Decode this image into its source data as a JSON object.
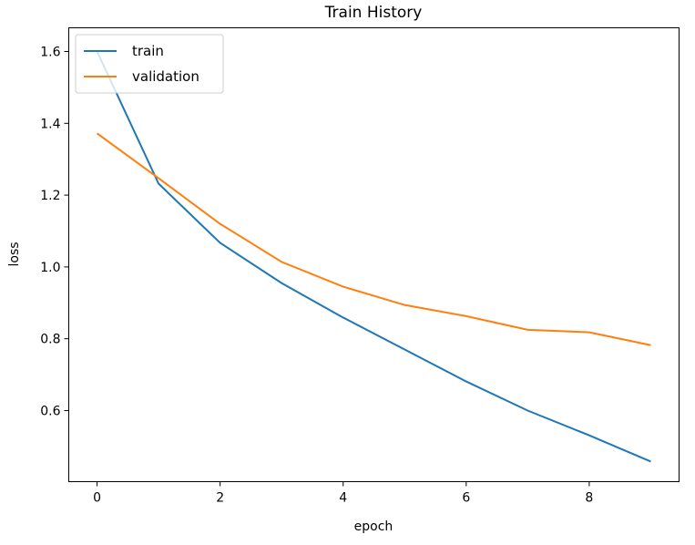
{
  "chart_data": {
    "type": "line",
    "title": "Train History",
    "xlabel": "epoch",
    "ylabel": "loss",
    "x": [
      0,
      1,
      2,
      3,
      4,
      5,
      6,
      7,
      8,
      9
    ],
    "xlim": [
      -0.46,
      9.46
    ],
    "ylim": [
      0.402,
      1.666
    ],
    "xticks": [
      0,
      2,
      4,
      6,
      8
    ],
    "xtick_labels": [
      "0",
      "2",
      "4",
      "6",
      "8"
    ],
    "yticks": [
      0.6,
      0.8,
      1.0,
      1.2,
      1.4,
      1.6
    ],
    "ytick_labels": [
      "0.6",
      "0.8",
      "1.0",
      "1.2",
      "1.4",
      "1.6"
    ],
    "grid": false,
    "legend_position": "top-left",
    "series": [
      {
        "name": "train",
        "color": "#1f77b4",
        "values": [
          1.6,
          1.232,
          1.067,
          0.955,
          0.859,
          0.77,
          0.681,
          0.6,
          0.531,
          0.458
        ]
      },
      {
        "name": "validation",
        "color": "#ff7f0e",
        "values": [
          1.372,
          1.247,
          1.12,
          1.014,
          0.945,
          0.894,
          0.863,
          0.825,
          0.818,
          0.782
        ]
      }
    ]
  }
}
